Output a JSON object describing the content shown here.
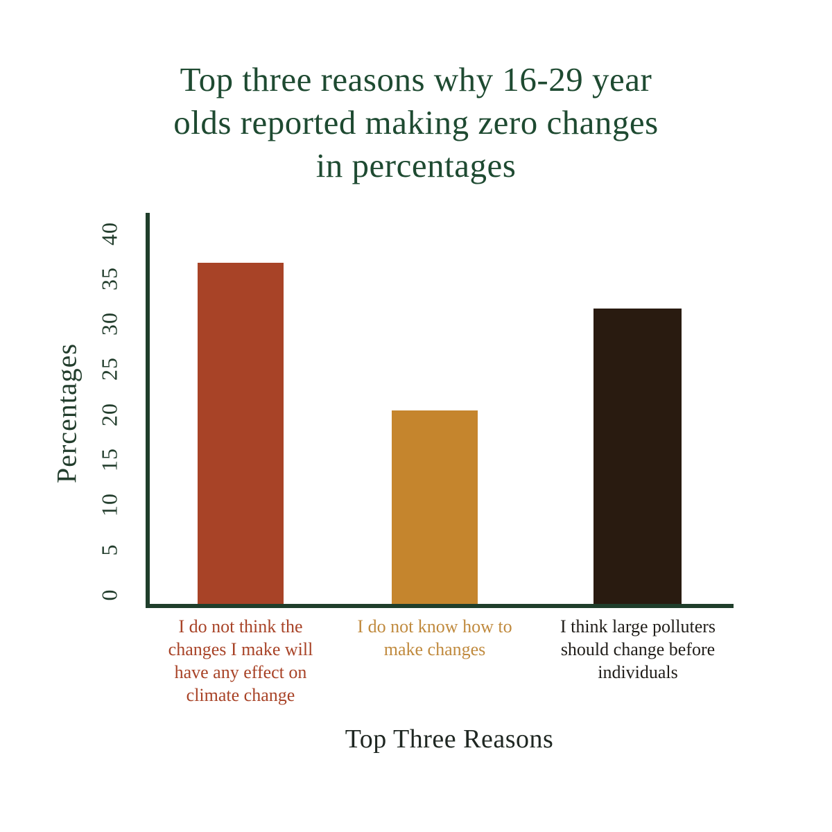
{
  "title": {
    "text": "Top three reasons why 16-29 year olds reported making zero changes in percentages",
    "lines": [
      "Top three reasons why 16-29 year",
      "olds reported making zero changes",
      "in percentages"
    ]
  },
  "colors": {
    "background": "#ffffff",
    "title_green": "#1e4a31",
    "axis_green": "#1f3e2b",
    "tick_green": "#223d2c",
    "x_axis_title_color": "#1f2722"
  },
  "chart_data": {
    "type": "bar",
    "title": "Top three reasons why 16-29 year olds reported making zero changes in percentages",
    "xlabel": "Top Three Reasons",
    "ylabel": "Percentages",
    "categories": [
      "I do not think the changes I make will have any effect on climate change",
      "I do not know how to make changes",
      "I think large polluters should change before individuals"
    ],
    "category_lines": [
      [
        "I do not think the",
        "changes I make will",
        "have any effect on",
        "climate change"
      ],
      [
        "I do not know how to",
        "make changes"
      ],
      [
        "I think large polluters",
        "should change before",
        "individuals"
      ]
    ],
    "values": [
      37,
      21,
      32
    ],
    "bar_colors": [
      "#a84327",
      "#c5852d",
      "#291b10"
    ],
    "category_label_colors": [
      "#a84327",
      "#c08a3e",
      "#201d19"
    ],
    "yticks": [
      40,
      35,
      30,
      25,
      20,
      15,
      10,
      5,
      0
    ],
    "ylim": [
      0,
      40
    ],
    "grid": false,
    "legend": false
  }
}
